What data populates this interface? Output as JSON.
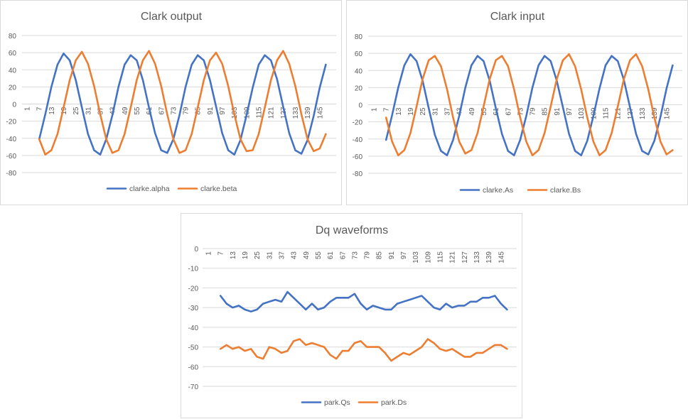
{
  "chart_data": [
    {
      "type": "line",
      "title": "Clark output",
      "xlabel": "",
      "ylabel": "",
      "ylim": [
        -80,
        80
      ],
      "yticks": [
        80,
        60,
        40,
        20,
        0,
        -20,
        -40,
        -60,
        -80
      ],
      "x_tick_labels": [
        "1",
        "7",
        "13",
        "19",
        "25",
        "31",
        "37",
        "43",
        "49",
        "55",
        "61",
        "67",
        "73",
        "79",
        "85",
        "91",
        "97",
        "103",
        "109",
        "115",
        "121",
        "127",
        "133",
        "139",
        "145"
      ],
      "x_range": [
        1,
        150
      ],
      "grid": true,
      "legend_position": "bottom",
      "x": [
        7,
        10,
        13,
        16,
        19,
        22,
        25,
        28,
        31,
        34,
        37,
        40,
        43,
        46,
        49,
        52,
        55,
        58,
        61,
        64,
        67,
        70,
        73,
        76,
        79,
        82,
        85,
        88,
        91,
        94,
        97,
        100,
        103,
        106,
        109,
        112,
        115,
        118,
        121,
        124,
        127,
        130,
        133,
        136,
        139,
        142,
        145,
        148
      ],
      "series": [
        {
          "name": "clarke.alpha",
          "color": "#4472C4",
          "values": [
            -41,
            -12,
            20,
            46,
            59,
            51,
            28,
            -4,
            -35,
            -54,
            -59,
            -41,
            -13,
            20,
            46,
            57,
            51,
            28,
            -4,
            -34,
            -54,
            -57,
            -41,
            -13,
            20,
            46,
            57,
            51,
            28,
            -3,
            -34,
            -54,
            -59,
            -42,
            -13,
            19,
            46,
            57,
            51,
            29,
            -3,
            -34,
            -54,
            -58,
            -42,
            -14,
            19,
            46
          ]
        },
        {
          "name": "clarke.beta",
          "color": "#ED7D31",
          "values": [
            -41,
            -59,
            -54,
            -35,
            -4,
            28,
            51,
            61,
            47,
            21,
            -12,
            -41,
            -57,
            -54,
            -35,
            -4,
            28,
            51,
            62,
            47,
            21,
            -12,
            -41,
            -57,
            -54,
            -35,
            -4,
            28,
            51,
            60,
            47,
            21,
            -12,
            -41,
            -55,
            -54,
            -35,
            -4,
            28,
            51,
            62,
            47,
            21,
            -12,
            -41,
            -55,
            -52,
            -35
          ]
        }
      ]
    },
    {
      "type": "line",
      "title": "Clark input",
      "xlabel": "",
      "ylabel": "",
      "ylim": [
        -80,
        80
      ],
      "yticks": [
        80,
        60,
        40,
        20,
        0,
        -20,
        -40,
        -60,
        -80
      ],
      "x_tick_labels": [
        "1",
        "7",
        "13",
        "19",
        "25",
        "31",
        "37",
        "43",
        "49",
        "55",
        "61",
        "67",
        "73",
        "79",
        "85",
        "91",
        "97",
        "103",
        "109",
        "115",
        "121",
        "127",
        "133",
        "139",
        "145"
      ],
      "x_range": [
        1,
        150
      ],
      "grid": true,
      "legend_position": "bottom",
      "x": [
        7,
        10,
        13,
        16,
        19,
        22,
        25,
        28,
        31,
        34,
        37,
        40,
        43,
        46,
        49,
        52,
        55,
        58,
        61,
        64,
        67,
        70,
        73,
        76,
        79,
        82,
        85,
        88,
        91,
        94,
        97,
        100,
        103,
        106,
        109,
        112,
        115,
        118,
        121,
        124,
        127,
        130,
        133,
        136,
        139,
        142,
        145,
        148
      ],
      "series": [
        {
          "name": "clarke.As",
          "color": "#4472C4",
          "values": [
            -41,
            -12,
            20,
            46,
            59,
            51,
            28,
            -4,
            -35,
            -54,
            -59,
            -41,
            -13,
            20,
            46,
            57,
            51,
            28,
            -4,
            -34,
            -54,
            -59,
            -41,
            -13,
            20,
            46,
            57,
            51,
            28,
            -3,
            -34,
            -54,
            -59,
            -42,
            -13,
            19,
            46,
            57,
            51,
            29,
            -3,
            -34,
            -54,
            -58,
            -42,
            -14,
            19,
            46
          ]
        },
        {
          "name": "clarke.Bs",
          "color": "#ED7D31",
          "values": [
            -15,
            -43,
            -59,
            -53,
            -33,
            -2,
            30,
            52,
            57,
            45,
            18,
            -15,
            -43,
            -57,
            -53,
            -33,
            -2,
            30,
            52,
            57,
            45,
            18,
            -15,
            -43,
            -59,
            -53,
            -33,
            -2,
            30,
            52,
            59,
            45,
            18,
            -15,
            -43,
            -59,
            -53,
            -33,
            -2,
            30,
            52,
            59,
            45,
            18,
            -15,
            -43,
            -58,
            -53
          ]
        }
      ]
    },
    {
      "type": "line",
      "title": "Dq waveforms",
      "xlabel": "",
      "ylabel": "",
      "ylim": [
        -70,
        0
      ],
      "yticks": [
        0,
        -10,
        -20,
        -30,
        -40,
        -50,
        -60,
        -70
      ],
      "x_tick_labels": [
        "1",
        "7",
        "13",
        "19",
        "25",
        "31",
        "37",
        "43",
        "49",
        "55",
        "61",
        "67",
        "73",
        "79",
        "85",
        "91",
        "97",
        "103",
        "109",
        "115",
        "121",
        "127",
        "133",
        "139",
        "145"
      ],
      "x_range": [
        1,
        150
      ],
      "grid": true,
      "legend_position": "bottom",
      "x": [
        7,
        10,
        13,
        16,
        19,
        22,
        25,
        28,
        31,
        34,
        37,
        40,
        43,
        46,
        49,
        52,
        55,
        58,
        61,
        64,
        67,
        70,
        73,
        76,
        79,
        82,
        85,
        88,
        91,
        94,
        97,
        100,
        103,
        106,
        109,
        112,
        115,
        118,
        121,
        124,
        127,
        130,
        133,
        136,
        139,
        142,
        145,
        148
      ],
      "series": [
        {
          "name": "park.Qs",
          "color": "#4472C4",
          "values": [
            -24,
            -28,
            -30,
            -29,
            -31,
            -32,
            -31,
            -28,
            -27,
            -26,
            -27,
            -22,
            -25,
            -28,
            -31,
            -28,
            -31,
            -30,
            -27,
            -25,
            -25,
            -25,
            -23,
            -28,
            -31,
            -29,
            -30,
            -31,
            -31,
            -28,
            -27,
            -26,
            -25,
            -24,
            -27,
            -30,
            -31,
            -28,
            -30,
            -29,
            -29,
            -27,
            -27,
            -25,
            -25,
            -24,
            -28,
            -31
          ]
        },
        {
          "name": "park.Ds",
          "color": "#ED7D31",
          "values": [
            -51,
            -49,
            -51,
            -50,
            -52,
            -51,
            -55,
            -56,
            -50,
            -51,
            -53,
            -52,
            -47,
            -46,
            -49,
            -48,
            -49,
            -50,
            -54,
            -56,
            -52,
            -52,
            -48,
            -47,
            -50,
            -50,
            -50,
            -53,
            -57,
            -55,
            -53,
            -54,
            -52,
            -50,
            -46,
            -48,
            -51,
            -52,
            -51,
            -53,
            -55,
            -55,
            -53,
            -53,
            -51,
            -49,
            -49,
            -51
          ]
        }
      ]
    }
  ]
}
